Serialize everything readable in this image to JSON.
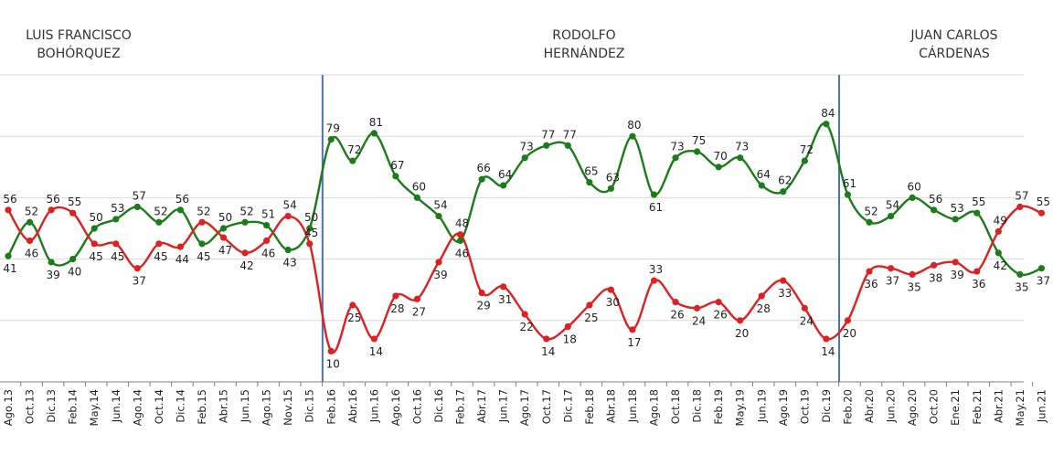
{
  "chart_data": {
    "type": "line",
    "eras": [
      {
        "lines": [
          "LUIS FRANCISCO",
          "BOHÓRQUEZ"
        ]
      },
      {
        "lines": [
          "RODOLFO",
          "HERNÁNDEZ"
        ]
      },
      {
        "lines": [
          "JUAN CARLOS",
          "CÁRDENAS"
        ]
      }
    ],
    "categories": [
      "Ago.13",
      "Oct.13",
      "Dic.13",
      "Feb.14",
      "May.14",
      "Jun.14",
      "Ago.14",
      "Oct.14",
      "Dic.14",
      "Feb.15",
      "Abr.15",
      "Jun.15",
      "Ago.15",
      "Nov.15",
      "Dic.15",
      "Feb.16",
      "Abr.16",
      "Jun.16",
      "Ago.16",
      "Oct.16",
      "Dic.16",
      "Feb.17",
      "Abr.17",
      "Jun.17",
      "Ago.17",
      "Oct.17",
      "Dic.17",
      "Feb.18",
      "Abr.18",
      "Jun.18",
      "Ago.18",
      "Oct.18",
      "Dic.18",
      "Feb.19",
      "May.19",
      "Jun.19",
      "Ago.19",
      "Oct.19",
      "Dic.19",
      "Feb.20",
      "Abr.20",
      "Jun.20",
      "Ago.20",
      "Oct.20",
      "Ene.21",
      "Feb.21",
      "Abr.21",
      "May.21",
      "Jun.21"
    ],
    "series": [
      {
        "color": "#1a7d1a",
        "values": [
          41,
          52,
          39,
          40,
          50,
          53,
          57,
          52,
          56,
          45,
          50,
          52,
          51,
          43,
          50,
          79,
          72,
          81,
          67,
          60,
          54,
          46,
          66,
          64,
          73,
          77,
          77,
          65,
          63,
          80,
          61,
          73,
          75,
          70,
          73,
          64,
          62,
          72,
          84,
          61,
          52,
          54,
          60,
          56,
          53,
          55,
          42,
          35,
          37
        ]
      },
      {
        "color": "#e02020",
        "values": [
          56,
          46,
          56,
          55,
          45,
          45,
          37,
          45,
          44,
          52,
          47,
          42,
          46,
          54,
          45,
          10,
          25,
          14,
          28,
          27,
          39,
          48,
          29,
          31,
          22,
          14,
          18,
          25,
          30,
          17,
          33,
          26,
          24,
          26,
          20,
          28,
          33,
          24,
          14,
          20,
          36,
          37,
          35,
          38,
          39,
          36,
          49,
          57,
          55
        ]
      }
    ],
    "label_positions": {
      "green": [
        "below",
        "above",
        "below",
        "below",
        "above",
        "above",
        "above",
        "above",
        "above",
        "below",
        "above",
        "above",
        "above",
        "below",
        "above",
        "above",
        "above",
        "above",
        "above",
        "above",
        "above",
        "below",
        "above",
        "above",
        "above",
        "above",
        "above",
        "above",
        "above",
        "above",
        "below",
        "above",
        "above",
        "above",
        "above",
        "above",
        "above",
        "above",
        "above",
        "above",
        "above",
        "above",
        "above",
        "above",
        "above",
        "above",
        "below",
        "below",
        "below"
      ],
      "red": [
        "above",
        "below",
        "above",
        "above",
        "below",
        "below",
        "below",
        "below",
        "below",
        "above",
        "below",
        "below",
        "below",
        "above",
        "above",
        "below",
        "below",
        "below",
        "below",
        "below",
        "below",
        "above",
        "below",
        "below",
        "below",
        "below",
        "below",
        "below",
        "below",
        "below",
        "above",
        "below",
        "below",
        "below",
        "below",
        "below",
        "below",
        "below",
        "below",
        "below",
        "below",
        "below",
        "below",
        "below",
        "below",
        "below",
        "above",
        "above",
        "above"
      ]
    },
    "divider_after": [
      "Dic.15",
      "Dic.19"
    ],
    "ylim": [
      0,
      100
    ],
    "grid": "horizontal",
    "legend": "none"
  }
}
